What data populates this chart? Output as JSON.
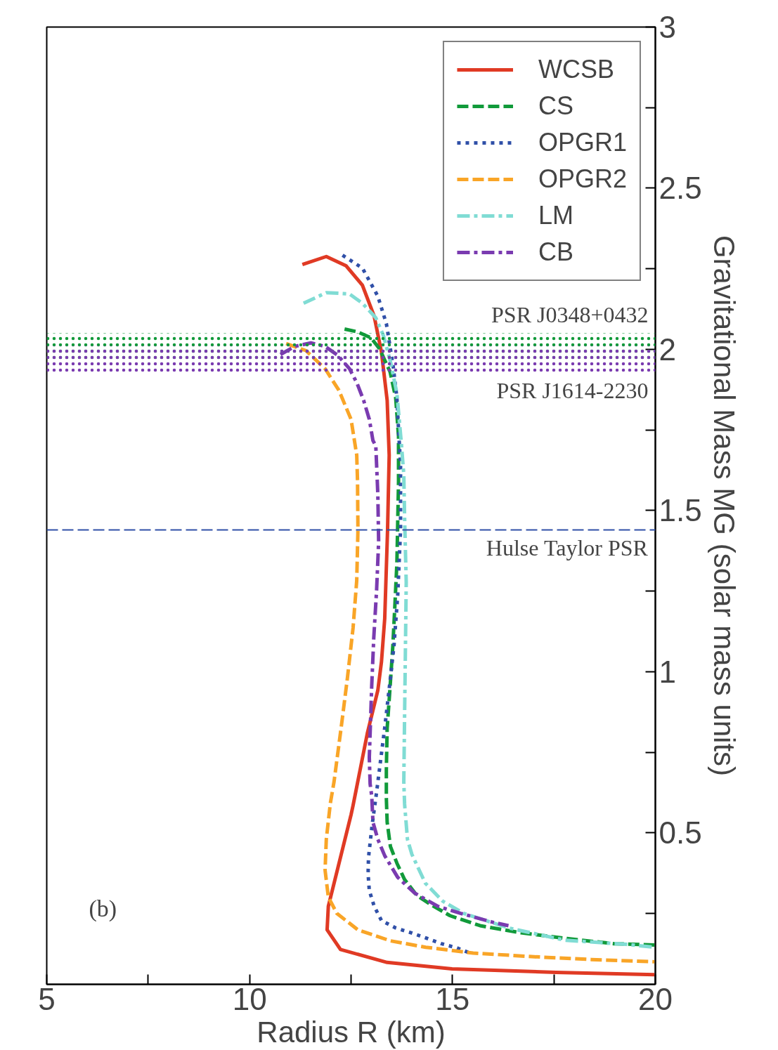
{
  "chart_data": {
    "type": "line",
    "xlabel": "Radius R (km)",
    "ylabel": "Gravitational Mass MG (solar mass units)",
    "xlim": [
      5,
      20
    ],
    "ylim": [
      0.03,
      3
    ],
    "xticks": [
      5,
      {
        "value": 7.5,
        "label": null
      },
      10,
      {
        "value": 12.5,
        "label": null
      },
      15,
      {
        "value": 17.5,
        "label": null
      },
      20
    ],
    "yticks": [
      {
        "value": 0.25,
        "label": null
      },
      0.5,
      {
        "value": 0.75,
        "label": null
      },
      1,
      {
        "value": 1.25,
        "label": null
      },
      1.5,
      {
        "value": 1.75,
        "label": null
      },
      2,
      {
        "value": 2.25,
        "label": null
      },
      2.5,
      {
        "value": 2.75,
        "label": null
      },
      3
    ],
    "grid": false,
    "legend": "top right",
    "marker": "none",
    "series": [
      {
        "name": "WCSB",
        "color": "#e03a24",
        "line_style": "solid",
        "x": [
          11.3,
          11.89,
          12.38,
          12.78,
          13.07,
          13.25,
          13.39,
          13.44,
          13.4,
          13.33,
          13.25,
          13.16,
          12.9,
          12.55,
          12.5,
          11.94,
          11.91,
          12.24,
          13.39,
          14.99,
          17.55,
          19.98
        ],
        "values": [
          2.263,
          2.288,
          2.259,
          2.199,
          2.103,
          1.991,
          1.842,
          1.672,
          1.44,
          1.165,
          1.031,
          0.942,
          0.808,
          0.585,
          0.556,
          0.272,
          0.199,
          0.138,
          0.098,
          0.078,
          0.067,
          0.06
        ]
      },
      {
        "name": "CS",
        "color": "#119a3a",
        "line_style": "dashed",
        "x": [
          12.34,
          12.67,
          12.99,
          13.2,
          13.46,
          13.6,
          13.67,
          13.67,
          13.67,
          13.65,
          13.63,
          13.58,
          13.53,
          13.46,
          13.39,
          13.37,
          13.37,
          13.39,
          13.47,
          13.63,
          13.82,
          14.12,
          14.47,
          14.94,
          15.68,
          16.68,
          17.82,
          18.99,
          19.98
        ],
        "values": [
          2.063,
          2.054,
          2.036,
          2.002,
          1.931,
          1.85,
          1.73,
          1.685,
          1.589,
          1.462,
          1.337,
          1.205,
          1.08,
          0.949,
          0.824,
          0.696,
          0.607,
          0.533,
          0.458,
          0.406,
          0.355,
          0.306,
          0.277,
          0.243,
          0.212,
          0.19,
          0.172,
          0.156,
          0.152
        ]
      },
      {
        "name": "OPGR1",
        "color": "#3050a8",
        "line_style": "dotted",
        "x": [
          12.29,
          12.78,
          13.16,
          13.37,
          13.54,
          13.63,
          13.67,
          13.72,
          13.72,
          13.65,
          13.56,
          13.47,
          13.33,
          13.13,
          13.02,
          12.93,
          12.92,
          12.95,
          13.07,
          13.25,
          13.6,
          13.98,
          14.34,
          14.73,
          15.11,
          15.47
        ],
        "values": [
          2.292,
          2.252,
          2.165,
          2.08,
          1.946,
          1.85,
          1.752,
          1.641,
          1.44,
          1.237,
          1.083,
          0.98,
          0.826,
          0.627,
          0.525,
          0.424,
          0.373,
          0.321,
          0.272,
          0.228,
          0.205,
          0.19,
          0.174,
          0.156,
          0.143,
          0.125
        ]
      },
      {
        "name": "OPGR2",
        "color": "#f9a527",
        "line_style": "dashed",
        "x": [
          10.9,
          11.39,
          11.86,
          12.2,
          12.5,
          12.64,
          12.66,
          12.67,
          12.64,
          12.55,
          12.41,
          12.26,
          12.08,
          11.99,
          11.89,
          11.86,
          11.94,
          12.15,
          12.67,
          13.47,
          14.34,
          15.51,
          16.95,
          18.42,
          19.98
        ],
        "values": [
          2.018,
          1.996,
          1.94,
          1.873,
          1.783,
          1.672,
          1.589,
          1.44,
          1.283,
          1.136,
          0.98,
          0.83,
          0.658,
          0.592,
          0.48,
          0.384,
          0.301,
          0.25,
          0.199,
          0.165,
          0.145,
          0.127,
          0.116,
          0.107,
          0.1
        ]
      },
      {
        "name": "LM",
        "color": "#80dcd4",
        "line_style": "dashdot",
        "x": [
          11.33,
          11.89,
          12.46,
          12.78,
          13.11,
          13.3,
          13.47,
          13.63,
          13.74,
          13.8,
          13.82,
          13.86,
          13.84,
          13.82,
          13.8,
          13.82,
          13.89,
          14.0,
          14.33,
          14.76,
          15.28,
          16.38,
          17.77,
          19.29,
          19.98
        ],
        "values": [
          2.143,
          2.176,
          2.172,
          2.143,
          2.098,
          2.042,
          1.962,
          1.864,
          1.708,
          1.612,
          1.478,
          1.277,
          1.069,
          0.868,
          0.658,
          0.589,
          0.48,
          0.433,
          0.344,
          0.288,
          0.25,
          0.205,
          0.167,
          0.154,
          0.145
        ]
      },
      {
        "name": "CB",
        "color": "#7a3bb0",
        "line_style": "dashdot",
        "x": [
          10.76,
          11.11,
          11.51,
          11.86,
          12.17,
          12.46,
          12.64,
          12.81,
          12.95,
          13.04,
          13.11,
          13.16,
          13.18,
          13.13,
          13.06,
          13.01,
          12.95,
          12.97,
          13.01,
          13.04,
          13.16,
          13.33,
          13.65,
          14.07,
          14.64,
          15.21,
          15.98,
          16.38
        ],
        "values": [
          1.984,
          2.009,
          2.02,
          2.009,
          1.982,
          1.94,
          1.897,
          1.842,
          1.783,
          1.717,
          1.701,
          1.551,
          1.404,
          1.254,
          1.105,
          0.958,
          0.734,
          0.652,
          0.614,
          0.533,
          0.48,
          0.429,
          0.362,
          0.313,
          0.272,
          0.25,
          0.223,
          0.212
        ]
      }
    ],
    "bands": [
      {
        "axis": "y",
        "from": 1.97,
        "to": 2.05,
        "label": "PSR J0348+0432",
        "color": "#119a3a"
      },
      {
        "axis": "y",
        "from": 1.93,
        "to": 2.01,
        "label": "PSR J1614-2230",
        "color": "#7a3bb0"
      }
    ],
    "ref_lines": [
      {
        "axis": "y",
        "value": 1.44,
        "label": "Hulse Taylor PSR",
        "color": "#3050a8",
        "line_style": "dashed"
      }
    ],
    "annotations": [
      "(b)"
    ]
  }
}
